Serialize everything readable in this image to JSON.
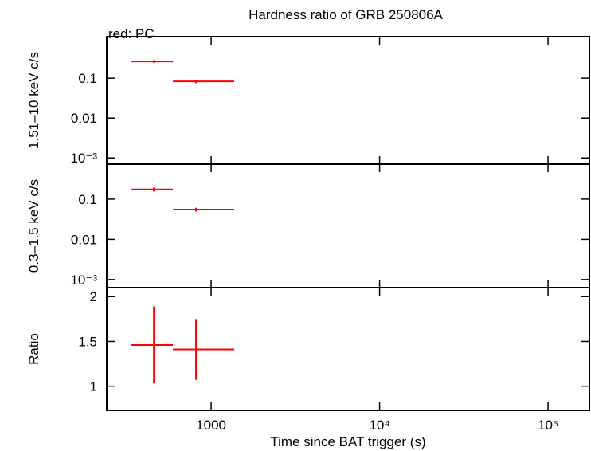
{
  "chart_data": [
    {
      "type": "errorbar",
      "title": "Hardness ratio of GRB 250806A",
      "subtitle": "red: PC",
      "ylabel": "1.51–10 keV c/s",
      "yscale": "log",
      "ylim": [
        0.0007,
        1.1
      ],
      "yticks": [
        0.1,
        0.01,
        {
          "value": 0.001,
          "label": "10⁻³"
        }
      ],
      "series": [
        {
          "color": "#ff0000",
          "x": [
            457,
            813
          ],
          "x_low": [
            337,
            593
          ],
          "x_high": [
            593,
            1371
          ],
          "values": [
            0.263,
            0.083
          ],
          "errors": [
            0.02,
            0.008
          ]
        }
      ]
    },
    {
      "type": "errorbar",
      "ylabel": "0.3–1.5 keV c/s",
      "yscale": "log",
      "ylim": [
        0.00063,
        0.74
      ],
      "yticks": [
        0.1,
        0.01,
        {
          "value": 0.001,
          "label": "10⁻³"
        }
      ],
      "series": [
        {
          "color": "#ff0000",
          "x": [
            457,
            813
          ],
          "x_low": [
            337,
            593
          ],
          "x_high": [
            593,
            1371
          ],
          "values": [
            0.174,
            0.055
          ],
          "errors": [
            0.02,
            0.006
          ]
        }
      ]
    },
    {
      "type": "errorbar",
      "ylabel": "Ratio",
      "xlabel": "Time since BAT trigger (s)",
      "xscale": "log",
      "xlim": [
        240,
        176000
      ],
      "xticks": [
        1000,
        {
          "value": 10000,
          "label": "10⁴"
        },
        {
          "value": 100000,
          "label": "10⁵"
        }
      ],
      "yscale": "linear",
      "ylim": [
        0.73,
        2.1
      ],
      "yticks": [
        1,
        1.5,
        2
      ],
      "series": [
        {
          "color": "#ff0000",
          "x": [
            457,
            813
          ],
          "x_low": [
            337,
            593
          ],
          "x_high": [
            593,
            1371
          ],
          "values": [
            1.46,
            1.41
          ],
          "errors": [
            0.43,
            0.34
          ]
        }
      ]
    }
  ]
}
